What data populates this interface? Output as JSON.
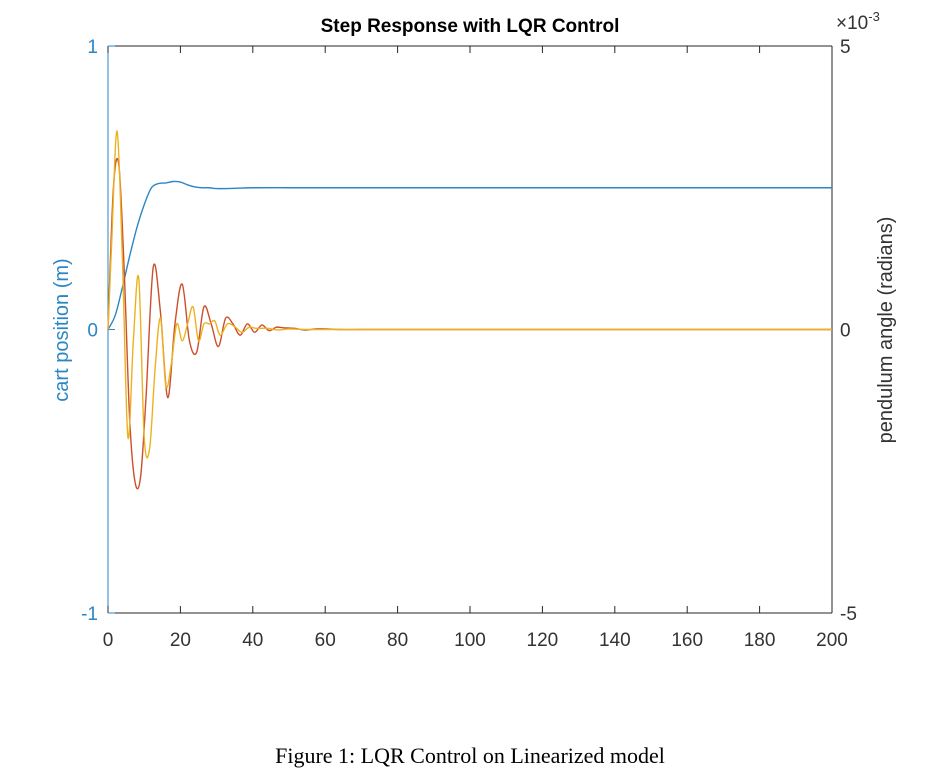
{
  "chart_data": {
    "type": "line",
    "title": "Step Response with LQR Control",
    "x_ticks": [
      "0",
      "20",
      "40",
      "60",
      "80",
      "100",
      "120",
      "140",
      "160",
      "180",
      "200"
    ],
    "xlim": [
      0,
      200
    ],
    "left_axis": {
      "label": "cart position (m)",
      "ylim": [
        -1,
        1
      ],
      "ticks": [
        "1",
        "0",
        "-1"
      ],
      "color": "#2a86c4"
    },
    "right_axis": {
      "label": "pendulum angle (radians)",
      "ylim": [
        -0.005,
        0.005
      ],
      "ticks": [
        "5",
        "0",
        "-5"
      ],
      "exponent_base": "×10",
      "exponent_power": "-3",
      "color": "#333333"
    },
    "series": [
      {
        "axis": "left",
        "color": "#2a86c4",
        "x": [
          0,
          2,
          4,
          6,
          8,
          10,
          12,
          14,
          16,
          18,
          20,
          22,
          24,
          26,
          28,
          30,
          35,
          40,
          50,
          60,
          80,
          100,
          150,
          200
        ],
        "y": [
          0,
          0.05,
          0.15,
          0.26,
          0.36,
          0.44,
          0.5,
          0.515,
          0.517,
          0.522,
          0.52,
          0.51,
          0.503,
          0.5,
          0.5,
          0.497,
          0.498,
          0.5,
          0.5,
          0.5,
          0.5,
          0.5,
          0.5,
          0.5
        ]
      },
      {
        "axis": "right",
        "color": "#c9502a",
        "x": [
          0,
          1.5,
          3,
          4.5,
          6,
          7.5,
          9,
          10.5,
          12.5,
          14.5,
          16.5,
          18.5,
          20.5,
          22.5,
          24.5,
          26.5,
          28.5,
          30.5,
          32.5,
          34.5,
          36.5,
          38.5,
          40.5,
          42.5,
          44.5,
          46.5,
          48.5,
          51.5,
          54.5,
          57.5,
          60.5,
          64,
          70,
          80,
          100,
          150,
          200
        ],
        "y": [
          0,
          0.0025,
          0.0029,
          0.001,
          -0.0016,
          -0.0027,
          -0.0026,
          -0.0012,
          0.0011,
          0.0003,
          -0.0012,
          0.0001,
          0.0008,
          -0.0002,
          -0.0004,
          0.0004,
          0.0001,
          -0.0003,
          0.0002,
          0.0001,
          -0.0001,
          0.0001,
          -5e-05,
          8e-05,
          -2e-05,
          4e-05,
          3e-05,
          2e-05,
          -1e-05,
          1e-05,
          1e-05,
          0,
          0,
          0,
          0,
          0,
          0
        ]
      },
      {
        "axis": "right",
        "color": "#edb120",
        "x": [
          0,
          1,
          2.5,
          4,
          5.5,
          7,
          8.5,
          10,
          11.5,
          13,
          14.5,
          16,
          17.5,
          19,
          20.5,
          22,
          23.5,
          25,
          26.5,
          28,
          29.5,
          31,
          33,
          35,
          37,
          39,
          41,
          44,
          47,
          50,
          55,
          60,
          70,
          80,
          100,
          150,
          200
        ],
        "y": [
          0,
          0.0015,
          0.0035,
          0.0012,
          -0.0019,
          -0.0002,
          0.0009,
          -0.0019,
          -0.0021,
          -0.0007,
          0.0002,
          -0.001,
          -0.0006,
          0.0001,
          -0.0002,
          0.0001,
          0.0004,
          -0.0002,
          0.0001,
          0.0001,
          0.00015,
          -0.0001,
          0.0001,
          5e-05,
          -5e-05,
          4e-05,
          2e-05,
          2e-05,
          -1e-05,
          1e-05,
          0,
          0,
          0,
          0,
          0,
          0,
          0
        ]
      }
    ],
    "grid": false
  },
  "caption": "Figure 1: LQR Control on Linearized model"
}
